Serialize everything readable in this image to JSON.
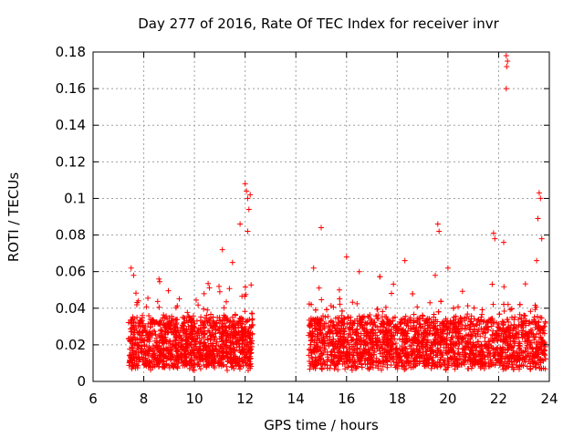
{
  "chart_data": {
    "type": "scatter",
    "title": "Day 277 of 2016, Rate Of TEC Index for receiver invr",
    "xlabel": "GPS time / hours",
    "ylabel": "ROTI / TECUs",
    "xlim": [
      6,
      24
    ],
    "ylim": [
      0,
      0.18
    ],
    "x_ticks": [
      6,
      8,
      10,
      12,
      14,
      16,
      18,
      20,
      22,
      24
    ],
    "y_ticks": [
      0,
      0.02,
      0.04,
      0.06,
      0.08,
      0.1,
      0.12,
      0.14,
      0.16,
      0.18
    ],
    "x_tick_labels": [
      "6",
      "8",
      "10",
      "12",
      "14",
      "16",
      "18",
      "20",
      "22",
      "24"
    ],
    "y_tick_labels": [
      "0",
      "0.02",
      "0.04",
      "0.06",
      "0.08",
      "0.1",
      "0.12",
      "0.14",
      "0.16",
      "0.18"
    ],
    "grid": true,
    "marker": "+",
    "color": "#ff0000",
    "series": [
      {
        "name": "ROTI",
        "segments": [
          {
            "x_start": 7.4,
            "x_end": 12.3,
            "typical_range": [
              0.008,
              0.035
            ]
          },
          {
            "x_start": 14.5,
            "x_end": 23.85,
            "typical_range": [
              0.008,
              0.035
            ]
          }
        ],
        "notable_points": [
          {
            "x": 7.5,
            "y": 0.062
          },
          {
            "x": 7.6,
            "y": 0.058
          },
          {
            "x": 8.6,
            "y": 0.056
          },
          {
            "x": 11.1,
            "y": 0.072
          },
          {
            "x": 11.5,
            "y": 0.065
          },
          {
            "x": 11.8,
            "y": 0.086
          },
          {
            "x": 12.0,
            "y": 0.108
          },
          {
            "x": 12.05,
            "y": 0.104
          },
          {
            "x": 12.1,
            "y": 0.1
          },
          {
            "x": 12.15,
            "y": 0.094
          },
          {
            "x": 12.2,
            "y": 0.102
          },
          {
            "x": 12.1,
            "y": 0.082
          },
          {
            "x": 14.7,
            "y": 0.062
          },
          {
            "x": 15.0,
            "y": 0.084
          },
          {
            "x": 16.0,
            "y": 0.068
          },
          {
            "x": 16.5,
            "y": 0.06
          },
          {
            "x": 18.3,
            "y": 0.066
          },
          {
            "x": 19.6,
            "y": 0.086
          },
          {
            "x": 19.65,
            "y": 0.082
          },
          {
            "x": 19.5,
            "y": 0.058
          },
          {
            "x": 20.0,
            "y": 0.062
          },
          {
            "x": 21.8,
            "y": 0.081
          },
          {
            "x": 21.85,
            "y": 0.078
          },
          {
            "x": 22.3,
            "y": 0.178
          },
          {
            "x": 22.35,
            "y": 0.175
          },
          {
            "x": 22.32,
            "y": 0.172
          },
          {
            "x": 22.3,
            "y": 0.16
          },
          {
            "x": 22.2,
            "y": 0.076
          },
          {
            "x": 23.6,
            "y": 0.103
          },
          {
            "x": 23.65,
            "y": 0.1
          },
          {
            "x": 23.55,
            "y": 0.089
          },
          {
            "x": 23.7,
            "y": 0.078
          },
          {
            "x": 23.5,
            "y": 0.066
          }
        ]
      }
    ]
  }
}
